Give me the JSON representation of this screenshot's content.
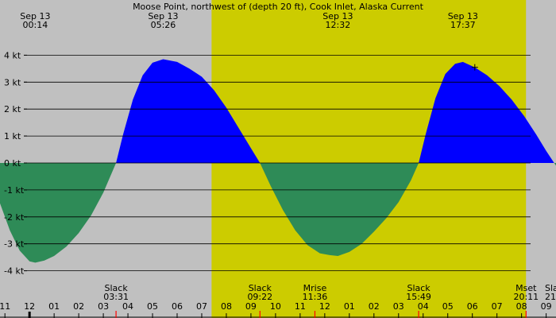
{
  "chart_data": {
    "type": "area",
    "title": "Moose Point, northwest of (depth 20 ft), Cook Inlet, Alaska Current",
    "y_unit": "kt",
    "ylim": [
      -4.4,
      4.4
    ],
    "y_ticks": [
      4,
      3,
      2,
      1,
      0,
      -1,
      -2,
      -3,
      -4
    ],
    "y_tick_labels": [
      "4 kt",
      "3 kt",
      "2 kt",
      "1 kt",
      "0 kt",
      "-1 kt",
      "-2 kt",
      "-3 kt",
      "-4 kt"
    ],
    "x_unit": "hours since midnight, Sep 13",
    "xlim": [
      -1.2,
      21.4
    ],
    "x_hour_ticks": [
      {
        "h": -1,
        "label": "11"
      },
      {
        "h": 0,
        "label": "12"
      },
      {
        "h": 1,
        "label": "01"
      },
      {
        "h": 2,
        "label": "02"
      },
      {
        "h": 3,
        "label": "03"
      },
      {
        "h": 4,
        "label": "04"
      },
      {
        "h": 5,
        "label": "05"
      },
      {
        "h": 6,
        "label": "06"
      },
      {
        "h": 7,
        "label": "07"
      },
      {
        "h": 8,
        "label": "08"
      },
      {
        "h": 9,
        "label": "09"
      },
      {
        "h": 10,
        "label": "10"
      },
      {
        "h": 11,
        "label": "11"
      },
      {
        "h": 12,
        "label": "12"
      },
      {
        "h": 13,
        "label": "01"
      },
      {
        "h": 14,
        "label": "02"
      },
      {
        "h": 15,
        "label": "03"
      },
      {
        "h": 16,
        "label": "04"
      },
      {
        "h": 17,
        "label": "05"
      },
      {
        "h": 18,
        "label": "06"
      },
      {
        "h": 19,
        "label": "07"
      },
      {
        "h": 20,
        "label": "08"
      },
      {
        "h": 21,
        "label": "09"
      }
    ],
    "daylight": {
      "start": 7.4,
      "end": 20.18
    },
    "extrema": [
      {
        "date": "Sep 13",
        "time": "00:14",
        "h": 0.233,
        "value": -3.7
      },
      {
        "date": "Sep 13",
        "time": "05:26",
        "h": 5.433,
        "value": 3.85
      },
      {
        "date": "Sep 13",
        "time": "12:32",
        "h": 12.533,
        "value": -3.45
      },
      {
        "date": "Sep 13",
        "time": "17:37",
        "h": 17.617,
        "value": 3.75
      }
    ],
    "slack_events": [
      {
        "label": "Slack",
        "time": "03:31",
        "h": 3.517
      },
      {
        "label": "Slack",
        "time": "09:22",
        "h": 9.367
      },
      {
        "label": "Slack",
        "time": "15:49",
        "h": 15.817
      }
    ],
    "moon_events": [
      {
        "label": "Mrise",
        "time": "11:36",
        "h": 11.6
      },
      {
        "label": "Mset",
        "time": "20:11",
        "h": 20.183
      }
    ],
    "truncated_labels": [
      {
        "label": "Slac",
        "time": "21",
        "h": 21.4
      }
    ],
    "current_marker": {
      "h": 18.1,
      "value": 3.55
    },
    "series": [
      {
        "values": [
          [
            -1.2,
            -1.5
          ],
          [
            -0.8,
            -2.5
          ],
          [
            -0.4,
            -3.25
          ],
          [
            0.0,
            -3.65
          ],
          [
            0.233,
            -3.7
          ],
          [
            0.6,
            -3.62
          ],
          [
            1.0,
            -3.45
          ],
          [
            1.5,
            -3.1
          ],
          [
            2.0,
            -2.6
          ],
          [
            2.5,
            -1.95
          ],
          [
            3.0,
            -1.1
          ],
          [
            3.517,
            0.0
          ],
          [
            3.8,
            1.05
          ],
          [
            4.2,
            2.35
          ],
          [
            4.6,
            3.25
          ],
          [
            5.0,
            3.72
          ],
          [
            5.433,
            3.85
          ],
          [
            6.0,
            3.75
          ],
          [
            6.5,
            3.5
          ],
          [
            7.0,
            3.2
          ],
          [
            7.5,
            2.7
          ],
          [
            8.0,
            2.05
          ],
          [
            8.5,
            1.3
          ],
          [
            9.0,
            0.55
          ],
          [
            9.367,
            0.0
          ],
          [
            9.8,
            -0.85
          ],
          [
            10.3,
            -1.75
          ],
          [
            10.8,
            -2.5
          ],
          [
            11.3,
            -3.05
          ],
          [
            11.8,
            -3.35
          ],
          [
            12.2,
            -3.42
          ],
          [
            12.533,
            -3.45
          ],
          [
            13.0,
            -3.3
          ],
          [
            13.5,
            -3.0
          ],
          [
            14.0,
            -2.55
          ],
          [
            14.5,
            -2.05
          ],
          [
            15.0,
            -1.45
          ],
          [
            15.5,
            -0.65
          ],
          [
            15.817,
            0.0
          ],
          [
            16.1,
            1.05
          ],
          [
            16.5,
            2.4
          ],
          [
            16.9,
            3.3
          ],
          [
            17.3,
            3.68
          ],
          [
            17.617,
            3.75
          ],
          [
            18.1,
            3.55
          ],
          [
            18.6,
            3.25
          ],
          [
            19.1,
            2.85
          ],
          [
            19.6,
            2.35
          ],
          [
            20.1,
            1.75
          ],
          [
            20.6,
            1.05
          ],
          [
            21.0,
            0.45
          ],
          [
            21.4,
            -0.1
          ]
        ]
      }
    ],
    "colors": {
      "background": "#c0c0c0",
      "daylight": "#cccc00",
      "flood": "#0000ff",
      "ebb": "#2e8b57",
      "slack_tick": "#ff0000",
      "grid": "#000000",
      "midnight_tick": "#000000"
    }
  }
}
